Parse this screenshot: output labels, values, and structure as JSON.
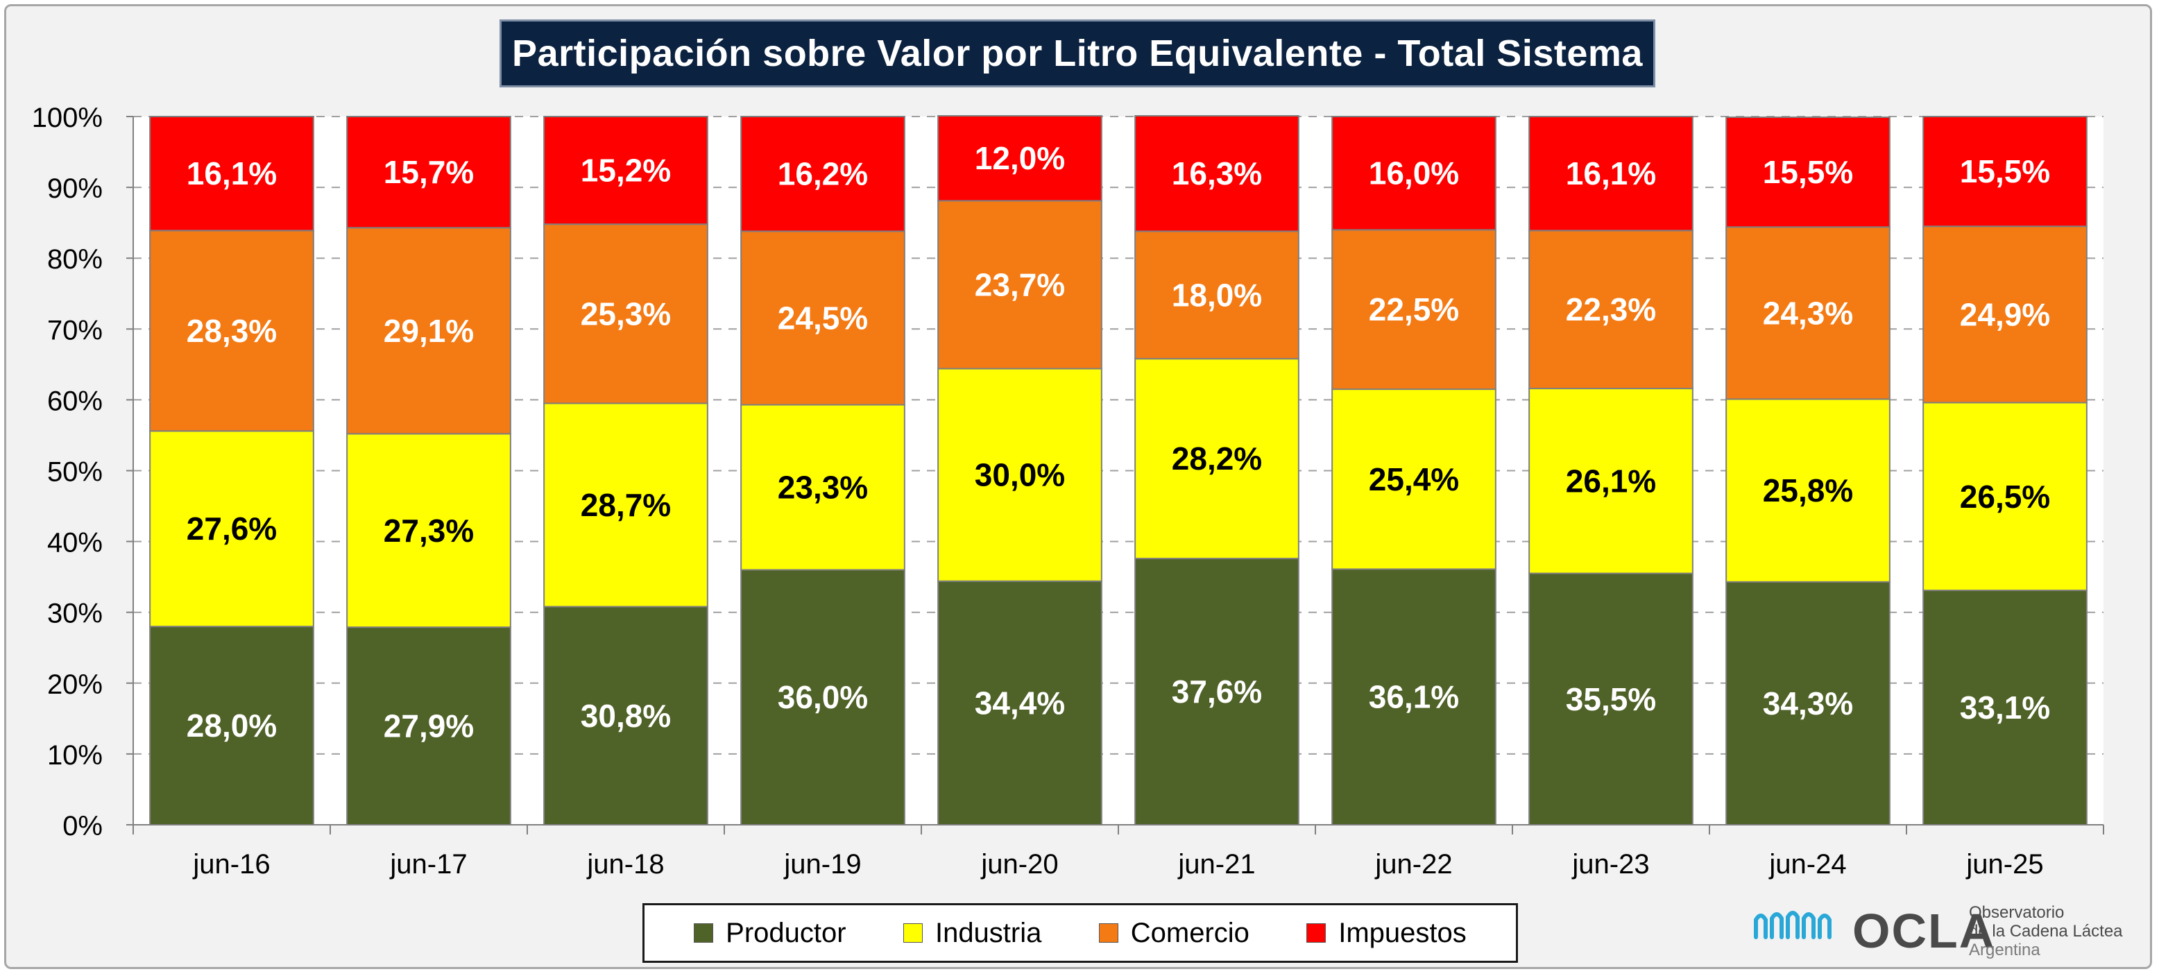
{
  "chart_data": {
    "type": "bar",
    "stacked": true,
    "title": "Participación sobre Valor por Litro Equivalente - Total Sistema",
    "categories": [
      "jun-16",
      "jun-17",
      "jun-18",
      "jun-19",
      "jun-20",
      "jun-21",
      "jun-22",
      "jun-23",
      "jun-24",
      "jun-25"
    ],
    "ylim": [
      0,
      100
    ],
    "yticks": [
      "0%",
      "10%",
      "20%",
      "30%",
      "40%",
      "50%",
      "60%",
      "70%",
      "80%",
      "90%",
      "100%"
    ],
    "grid": true,
    "legend_position": "bottom",
    "series": [
      {
        "name": "Productor",
        "color": "#4f6228",
        "label_color": "#ffffff",
        "values": [
          28.0,
          27.9,
          30.8,
          36.0,
          34.4,
          37.6,
          36.1,
          35.5,
          34.3,
          33.1
        ],
        "labels": [
          "28,0%",
          "27,9%",
          "30,8%",
          "36,0%",
          "34,4%",
          "37,6%",
          "36,1%",
          "35,5%",
          "34,3%",
          "33,1%"
        ]
      },
      {
        "name": "Industria",
        "color": "#ffff00",
        "label_color": "#000000",
        "values": [
          27.6,
          27.3,
          28.7,
          23.3,
          30.0,
          28.2,
          25.4,
          26.1,
          25.8,
          26.5
        ],
        "labels": [
          "27,6%",
          "27,3%",
          "28,7%",
          "23,3%",
          "30,0%",
          "28,2%",
          "25,4%",
          "26,1%",
          "25,8%",
          "26,5%"
        ]
      },
      {
        "name": "Comercio",
        "color": "#f47a14",
        "label_color": "#ffffff",
        "values": [
          28.3,
          29.1,
          25.3,
          24.5,
          23.7,
          18.0,
          22.5,
          22.3,
          24.3,
          24.9
        ],
        "labels": [
          "28,3%",
          "29,1%",
          "25,3%",
          "24,5%",
          "23,7%",
          "18,0%",
          "22,5%",
          "22,3%",
          "24,3%",
          "24,9%"
        ]
      },
      {
        "name": "Impuestos",
        "color": "#ff0000",
        "label_color": "#ffffff",
        "values": [
          16.1,
          15.7,
          15.2,
          16.2,
          12.0,
          16.3,
          16.0,
          16.1,
          15.5,
          15.5
        ],
        "labels": [
          "16,1%",
          "15,7%",
          "15,2%",
          "16,2%",
          "12,0%",
          "16,3%",
          "16,0%",
          "16,1%",
          "15,5%",
          "15,5%"
        ]
      }
    ]
  },
  "logo": {
    "name": "OCLA",
    "line1": "Observatorio",
    "line2": "de la Cadena Láctea",
    "line3": "Argentina"
  }
}
